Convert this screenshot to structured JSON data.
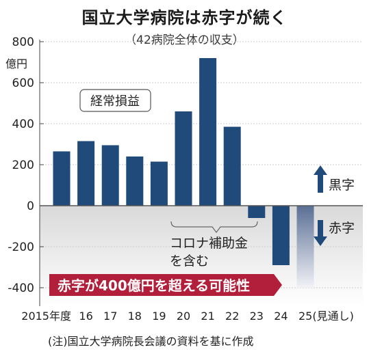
{
  "title": "国立大学病院は赤字が続く",
  "subtitle": "（42病院全体の収支）",
  "source_note": "(注)国立大学病院長会議の資料を基に作成",
  "colors": {
    "bar": "#1f4a7a",
    "bar_forecast_top": "#5a6f95",
    "shade": "#d9d9d9",
    "callout": "#b21f3a",
    "arrow": "#1f4a7a",
    "grid": "#cccccc"
  },
  "chart_data": {
    "type": "bar",
    "unit_label": "億円",
    "categories": [
      "2015年度",
      "16",
      "17",
      "18",
      "19",
      "20",
      "21",
      "22",
      "23",
      "24",
      "25(見通し)"
    ],
    "values": [
      265,
      315,
      295,
      240,
      215,
      460,
      720,
      385,
      -60,
      -290,
      -400
    ],
    "ylim": [
      -450,
      800
    ],
    "yticks": [
      800,
      600,
      400,
      200,
      0,
      -200,
      -400
    ],
    "grid": true,
    "annotations": {
      "series_label": "経常損益",
      "covid_subsidy": "コロナ補助金を含む",
      "covid_subsidy_line1": "コロナ補助金",
      "covid_subsidy_line2": "を含む",
      "black_label": "黒字",
      "red_label": "赤字",
      "callout": "赤字が400億円を超える可能性"
    }
  }
}
